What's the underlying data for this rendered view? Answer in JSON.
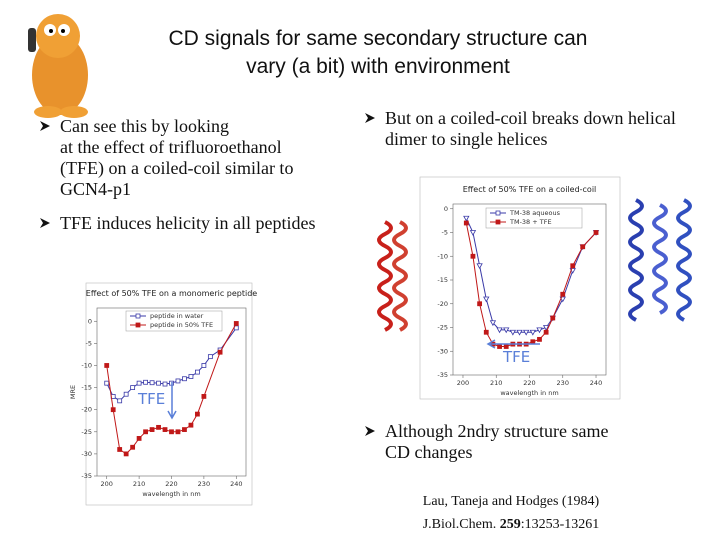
{
  "title": [
    "CD signals for same secondary structure can",
    "vary (a bit) with environment"
  ],
  "bullets_left": [
    {
      "lines": [
        "Can see this by looking",
        "at the effect of trifluoroethanol",
        "(TFE) on a coiled-coil similar to",
        "GCN4-p1"
      ]
    },
    {
      "lines": [
        "TFE induces helicity in all peptides"
      ]
    }
  ],
  "bullets_right": [
    {
      "lines": [
        "But on a coiled-coil breaks down helical",
        "dimer to single helices"
      ]
    },
    {
      "lines": [
        "Although 2ndry structure same",
        "CD changes"
      ]
    }
  ],
  "citation": {
    "line1": "Lau, Taneja and Hodges (1984)",
    "journal": "J.Biol.Chem. ",
    "volume": "259",
    "pages": ":13253-13261"
  },
  "chart_data": [
    {
      "type": "line",
      "title": "Effect of 50% TFE on a monomeric peptide",
      "x_label": "wavelength in nm",
      "y_label": "MRE",
      "xlim": [
        197,
        243
      ],
      "xticks": [
        200,
        210,
        220,
        230,
        240
      ],
      "ylim": [
        -35,
        3
      ],
      "yticks": [
        0,
        -5,
        -10,
        -15,
        -20,
        -25,
        -30,
        -35
      ],
      "annotation": "TFE",
      "legend": "upper right",
      "series": [
        {
          "name": "peptide in water",
          "color": "#3a3aa8",
          "marker": "open",
          "x": [
            200,
            202,
            204,
            206,
            208,
            210,
            212,
            214,
            216,
            218,
            220,
            222,
            224,
            226,
            228,
            230,
            232,
            235,
            240
          ],
          "values": [
            -14,
            -17,
            -18,
            -16.5,
            -15,
            -14,
            -13.8,
            -13.9,
            -14,
            -14.2,
            -14,
            -13.5,
            -13,
            -12.5,
            -11.5,
            -10,
            -8,
            -6.5,
            -1.5
          ]
        },
        {
          "name": "peptide in 50% TFE",
          "color": "#c01818",
          "marker": "filled",
          "x": [
            200,
            202,
            204,
            206,
            208,
            210,
            212,
            214,
            216,
            218,
            220,
            222,
            224,
            226,
            228,
            230,
            235,
            240
          ],
          "values": [
            -10,
            -20,
            -29,
            -30,
            -28.5,
            -26.5,
            -25,
            -24.5,
            -24,
            -24.5,
            -25,
            -25,
            -24.5,
            -23.5,
            -21,
            -17,
            -7,
            -0.5
          ]
        }
      ]
    },
    {
      "type": "line",
      "title": "Effect of 50% TFE on a coiled-coil",
      "x_label": "wavelength in nm",
      "xlim": [
        197,
        243
      ],
      "xticks": [
        200,
        210,
        220,
        230,
        240
      ],
      "ylim": [
        -35,
        1
      ],
      "yticks": [
        0,
        -5,
        -10,
        -15,
        -20,
        -25,
        -30,
        -35
      ],
      "annotation": "TFE",
      "legend": "upper right",
      "series": [
        {
          "name": "TM-38 aqueous",
          "color": "#3a3aa8",
          "marker": "tri",
          "x": [
            201,
            203,
            205,
            207,
            209,
            211,
            213,
            215,
            217,
            219,
            221,
            223,
            225,
            227,
            230,
            233,
            236,
            240
          ],
          "values": [
            -2,
            -5,
            -12,
            -19,
            -24,
            -25.5,
            -25.5,
            -26,
            -26,
            -26,
            -26,
            -25.5,
            -25,
            -23,
            -19,
            -13,
            -8,
            -5
          ]
        },
        {
          "name": "TM-38 + TFE",
          "color": "#c01818",
          "marker": "filled",
          "x": [
            201,
            203,
            205,
            207,
            209,
            211,
            213,
            215,
            217,
            219,
            221,
            223,
            225,
            227,
            230,
            233,
            236,
            240
          ],
          "values": [
            -3,
            -10,
            -20,
            -26,
            -28.5,
            -29,
            -29,
            -28.5,
            -28.5,
            -28.5,
            -28,
            -27.5,
            -26,
            -23,
            -18,
            -12,
            -8,
            -5
          ]
        }
      ]
    }
  ]
}
